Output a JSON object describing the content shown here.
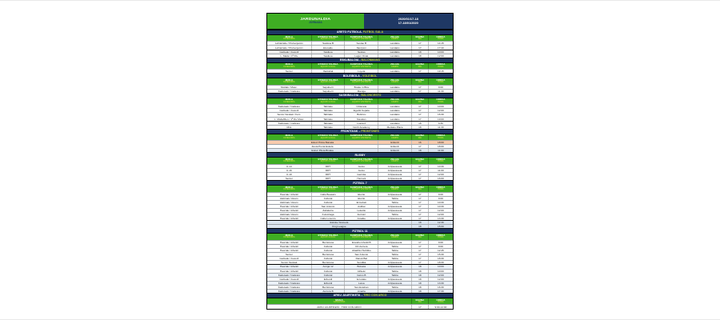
{
  "colors": {
    "green": "#3fae23",
    "navy": "#1f3864",
    "header_text_eu": "#ffffff",
    "header_text_es": "#e3ef3f",
    "salmon_row": "#f8cbad",
    "lightblue_row": "#dce6f1",
    "stripe_row": "#eaf0f8",
    "gray_row": "#ededed"
  },
  "header": {
    "title": "JARDUNALDIA",
    "subtitle": "JORNADA",
    "date_eu": "2020/01/17-18",
    "date_es": "17-18/01/2020"
  },
  "columns": [
    {
      "eu": "MAILA",
      "es": "CATEGORÍA"
    },
    {
      "eu": "ETXEKO TALDEA",
      "es": "EQUIPO LOCAL"
    },
    {
      "eu": "KANPOKO TALDEA",
      "es": "EQUIPO VISITANTE"
    },
    {
      "eu": "ZELAIA",
      "es": "CAMPO"
    },
    {
      "eu": "EGUNA",
      "es": "DÍA"
    },
    {
      "eu": "ORDUA",
      "es": "HORA"
    }
  ],
  "sections": [
    {
      "title_eu": "ARETO FUTBOLA-",
      "title_es": "FUTBOL SALA",
      "rows": [
        {
          "c": [
            "Lehiatzaile / Prebenjamin",
            "Sasikoa B",
            "Sestao B",
            "Landako",
            "17",
            "14:15"
          ]
        },
        {
          "c": [
            "Lehiatzaile / Prebenjamin",
            "Elexalde",
            "Skorpion",
            "Landako",
            "17",
            "17:40"
          ]
        },
        {
          "c": [
            "Gazteak / Juvenil",
            "Sasikoa",
            "Sestao",
            "Landako",
            "18",
            "10:00"
          ],
          "daybreak": true,
          "bg": "#ededed"
        },
        {
          "c": [
            "L. Maila / 1ª Div",
            "Sasikoa",
            "Lagun Onak",
            "Landako",
            "18",
            "12:00"
          ]
        }
      ]
    },
    {
      "title_eu": "ESKUBALOIA -",
      "title_es": "BALONMANO",
      "rows": [
        {
          "c": [
            "Senior",
            "Ibaizabal",
            "Loyola",
            "Landako",
            "17",
            "19:15"
          ]
        }
      ]
    },
    {
      "title_eu": "BOLEIBOLA -",
      "title_es": "VOLEIBOL",
      "rows": [
        {
          "c": [
            "Mutilak / Masc.",
            "Sapuberri",
            "Boske in Bira",
            "Landako",
            "17",
            "9:00"
          ]
        },
        {
          "c": [
            "Kadeteak / Cadetes",
            "Sapuberri",
            "Maniga",
            "Landako",
            "17",
            "11:30"
          ]
        }
      ]
    },
    {
      "title_eu": "SASKIBALOIA -",
      "title_es": "BALONCESTO",
      "rows": [
        {
          "c": [
            "Kadeteak / Cadetes",
            "Tabirako",
            "Urdaneta",
            "Landako",
            "17",
            "10:00"
          ]
        },
        {
          "c": [
            "Gazteak / Juvenil",
            "Tabirako",
            "Eguzki Kepala",
            "Landako",
            "17",
            "12:00"
          ]
        },
        {
          "c": [
            "Senior Neskak / Fem.",
            "Tabirako",
            "Bolintxu",
            "Landako",
            "17",
            "16:30"
          ]
        },
        {
          "c": [
            "L. Maila/Men / 1ª Div Masc",
            "Tabirako",
            "Navalan",
            "Landako",
            "17",
            "19:00"
          ]
        },
        {
          "c": [
            "Kadeteak / Cadetes",
            "Tabirako",
            "Loiola A",
            "Landako",
            "18",
            "9:30"
          ],
          "daybreak": true
        },
        {
          "c": [
            "Mini",
            "Tabirako",
            "North Academy",
            "Merkatu Plaza",
            "18",
            "11:30"
          ]
        }
      ]
    },
    {
      "title_eu": "FRONTOIAK –",
      "title_es": "FRONTONES",
      "rows": [
        {
          "c": [
            "Eskuz Pilota Banaka",
            "Ezkurdi",
            "16",
            "18:00"
          ],
          "spans": [
            3,
            1,
            1,
            1
          ],
          "bg": "#f8cbad"
        },
        {
          "c": [
            "Zesta Punta Eskola",
            "Ezkurdi",
            "17",
            "18:00"
          ],
          "spans": [
            3,
            1,
            1,
            1
          ]
        },
        {
          "c": [
            "Eskuz Pilota Binaka",
            "Ezkurdi",
            "18",
            "11:00"
          ],
          "spans": [
            3,
            1,
            1,
            1
          ],
          "bg": "#dce6f1"
        }
      ]
    },
    {
      "title_eu": "RUGBY",
      "title_es": "",
      "rows": [
        {
          "c": [
            "U-14",
            "DRT",
            "Getxo",
            "Arripausueta",
            "17",
            "10:30"
          ]
        },
        {
          "c": [
            "U-16",
            "DRT",
            "Getxo",
            "Arripausueta",
            "17",
            "11:00"
          ]
        },
        {
          "c": [
            "U-10",
            "DRT",
            "Gernika",
            "Arripausueta",
            "17",
            "12:00"
          ]
        },
        {
          "c": [
            "Senior",
            "DRT",
            "Hernani",
            "Arripausueta",
            "17",
            "16:00"
          ]
        }
      ]
    },
    {
      "title_eu": "FÚTBOL 7",
      "title_es": "",
      "rows": [
        {
          "c": [
            "Haurrak / Infantil",
            "Calle Beasain",
            "Elorrio",
            "Arripausueta",
            "17",
            "9:00"
          ]
        },
        {
          "c": [
            "Alebinak / Alevín",
            "Cultural",
            "Elorrio",
            "Tabira",
            "17",
            "9:00"
          ]
        },
        {
          "c": [
            "Alebinak / Alevín",
            "Cultural",
            "Ermubeti",
            "Tabira",
            "17",
            "10:30"
          ]
        },
        {
          "c": [
            "Haurrak / Infantil",
            "San Antonio",
            "Astibai",
            "Arripausueta",
            "17",
            "10:30"
          ]
        },
        {
          "c": [
            "Haurrak / Infantil",
            "Zabalarra",
            "Lekeitio",
            "Arripausueta",
            "17",
            "12:00"
          ]
        },
        {
          "c": [
            "Alebinak / Alevín",
            "Kurutziaga",
            "Iturriotz",
            "Tabira",
            "17",
            "12:00"
          ]
        },
        {
          "c": [
            "Haurrak / Infantil",
            "Calle Lorenzo",
            "Amaike",
            "Arripausueta",
            "17",
            "13:30"
          ]
        },
        {
          "c": [
            "Eskola / Escuela",
            "18",
            "12:30"
          ],
          "spans": [
            4,
            1,
            1
          ],
          "bg": "#dce6f1",
          "daybreak": true
        },
        {
          "c": [
            "King League",
            "18",
            "15:00"
          ],
          "spans": [
            4,
            1,
            1
          ],
          "bg": "#dce6f1"
        }
      ]
    },
    {
      "title_eu": "FÚTBOL 11",
      "title_es": "",
      "rows": [
        {
          "c": [
            "Haurrak / Infantil",
            "Berriotxoa",
            "Erandio Infantil B",
            "Arripausueta",
            "17",
            "9:00"
          ]
        },
        {
          "c": [
            "Haurrak / Infantil",
            "Cultural",
            "CD Aurrera",
            "Tabira",
            "17",
            "9:00"
          ]
        },
        {
          "c": [
            "Haurrak / Infantil",
            "Cultural",
            "Abadiño Hurbilko",
            "Tabira",
            "17",
            "12:45"
          ]
        },
        {
          "c": [
            "Senior",
            "Berriotxoa",
            "San Antonio",
            "Tabira",
            "17",
            "15:30"
          ]
        },
        {
          "c": [
            "Gazteak / Juvenil",
            "Cultural",
            "Danok Bat",
            "Tabira",
            "17",
            "18:30"
          ]
        },
        {
          "c": [
            "Senior Neskak",
            "Berriotxoa",
            "Sondika",
            "Arripausueta",
            "17",
            "18:30"
          ]
        },
        {
          "c": [
            "Haurrak / Infantil",
            "Amiga 12",
            "Bolueta",
            "Arripausueta",
            "18",
            "10:00"
          ],
          "daybreak": true,
          "bg": "#eaf0f8"
        },
        {
          "c": [
            "Haurrak / Infantil",
            "Cultural",
            "Athletic",
            "Tabira",
            "18",
            "10:00"
          ]
        },
        {
          "c": [
            "Kadeteak / Cadetes",
            "Cultural",
            "Getxo B",
            "Tabira",
            "18",
            "12:00"
          ],
          "bg": "#eaf0f8"
        },
        {
          "c": [
            "Gazteak / Juvenil",
            "Ezkurdi",
            "Iurretako",
            "Arripausueta",
            "18",
            "12:00"
          ]
        },
        {
          "c": [
            "Kadeteak / Cadetes",
            "Ezkurdi",
            "Leioa",
            "Arripausueta",
            "18",
            "13:30"
          ],
          "bg": "#eaf0f8"
        },
        {
          "c": [
            "Kadeteak / Cadetes",
            "Berriotxoa",
            "San Esteban",
            "Tabira",
            "18",
            "16:30"
          ]
        },
        {
          "c": [
            "Kadeteak / Cadetes",
            "Aurrera B",
            "Amaña",
            "Arripausueta",
            "18",
            "17:30"
          ],
          "bg": "#eaf0f8"
        }
      ]
    },
    {
      "title_eu": "ARKU JAURTIKETA –",
      "title_es": "TIRO CON ARCO",
      "header": "merged",
      "rows": [
        {
          "c": [
            "ARKU JAURTIKETA - TIRO CON ARCO",
            "17",
            "9:00-14:00"
          ],
          "spans": [
            4,
            1,
            1
          ]
        }
      ]
    }
  ]
}
